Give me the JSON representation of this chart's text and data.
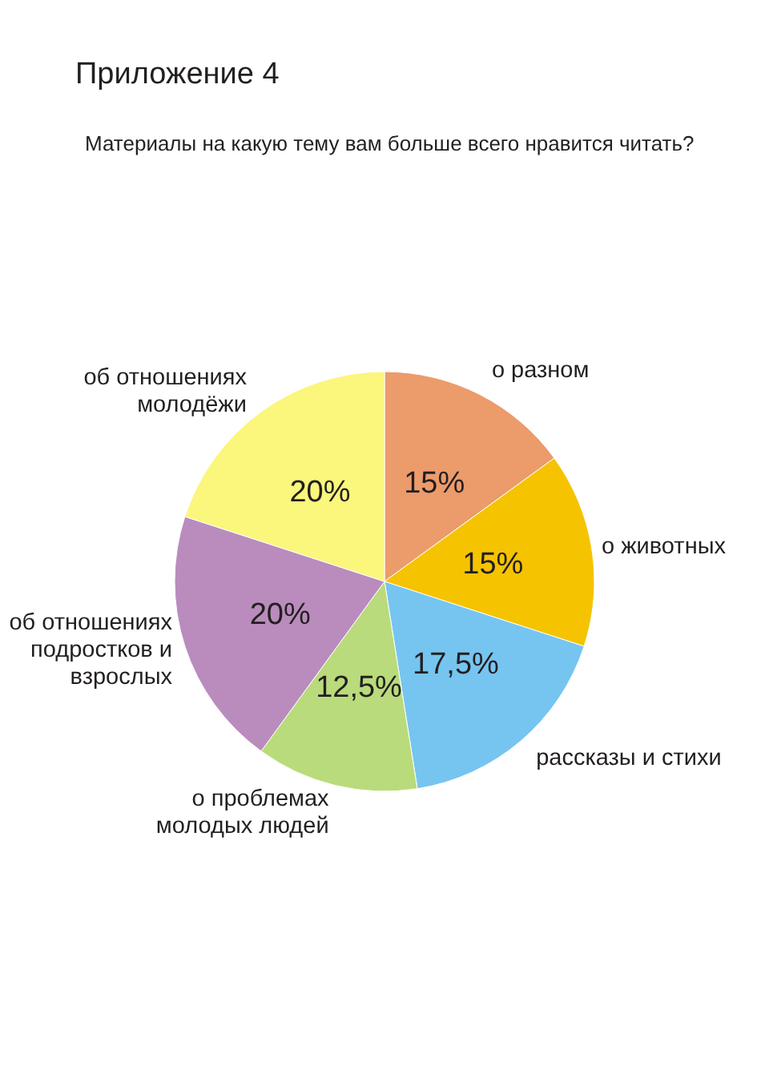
{
  "chart_data": {
    "type": "pie",
    "title": "Приложение 4",
    "subtitle": "Материалы на какую тему вам больше всего нравится читать?",
    "categories": [
      "о разном",
      "о животных",
      "рассказы и стихи",
      "о проблемах молодых людей",
      "об отношениях подростков и взрослых",
      "об отношениях молодёжи"
    ],
    "values": [
      15,
      15,
      17.5,
      12.5,
      20,
      20
    ],
    "colors": [
      "#ec9b6b",
      "#f5c300",
      "#76c5f0",
      "#b9db7b",
      "#b98cbd",
      "#fbf67c"
    ],
    "value_labels": [
      "15%",
      "15%",
      "17,5%",
      "12,5%",
      "20%",
      "20%"
    ]
  }
}
